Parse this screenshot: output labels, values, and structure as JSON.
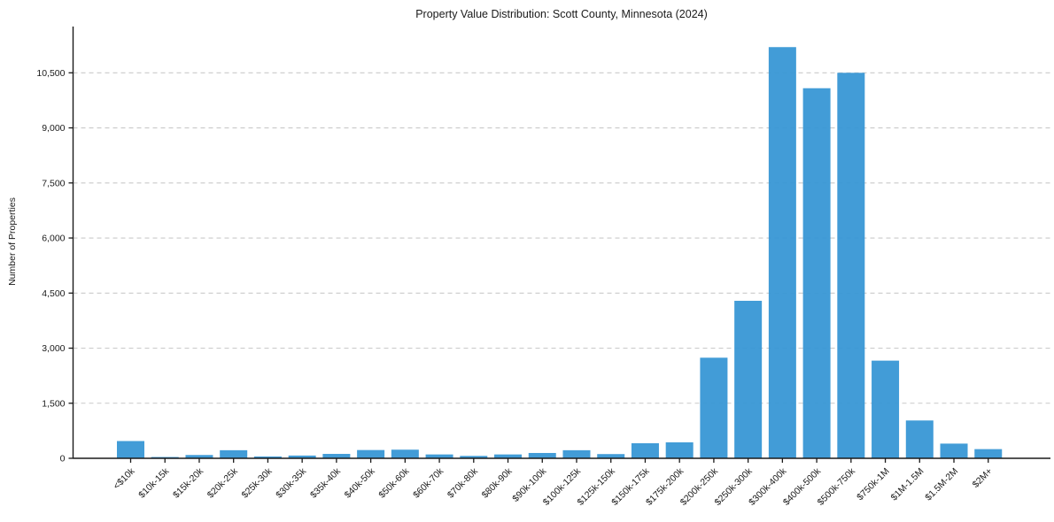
{
  "chart_data": {
    "type": "bar",
    "title": "Property Value Distribution: Scott County, Minnesota (2024)",
    "xlabel": "",
    "ylabel": "Number of Properties",
    "categories": [
      "<$10k",
      "$10k-15k",
      "$15k-20k",
      "$20k-25k",
      "$25k-30k",
      "$30k-35k",
      "$35k-40k",
      "$40k-50k",
      "$50k-60k",
      "$60k-70k",
      "$70k-80k",
      "$80k-90k",
      "$90k-100k",
      "$100k-125k",
      "$125k-150k",
      "$150k-175k",
      "$175k-200k",
      "$200k-250k",
      "$250k-300k",
      "$300k-400k",
      "$400k-500k",
      "$500k-750k",
      "$750k-1M",
      "$1M-1.5M",
      "$1.5M-2M",
      "$2M+"
    ],
    "values": [
      470,
      35,
      90,
      220,
      50,
      75,
      120,
      225,
      235,
      105,
      65,
      105,
      145,
      220,
      115,
      410,
      435,
      2740,
      4290,
      11200,
      10080,
      10500,
      2660,
      1030,
      400,
      250
    ],
    "ylim": [
      0,
      11760
    ],
    "ytick_interval": 1500,
    "yticks": [
      0,
      1500,
      3000,
      4500,
      6000,
      7500,
      9000,
      10500
    ],
    "ytick_labels": [
      "0",
      "1,500",
      "3,000",
      "4,500",
      "6,000",
      "7,500",
      "9,000",
      "10,500"
    ],
    "legend": "none",
    "grid": "horizontal-dashed",
    "colors": {
      "bar": "#3897d5",
      "grid": "#c9c9c9",
      "spine": "#1a1a1a",
      "text": "#1a1a1a",
      "background": "#ffffff"
    },
    "x_label_rotation_deg": 45
  }
}
